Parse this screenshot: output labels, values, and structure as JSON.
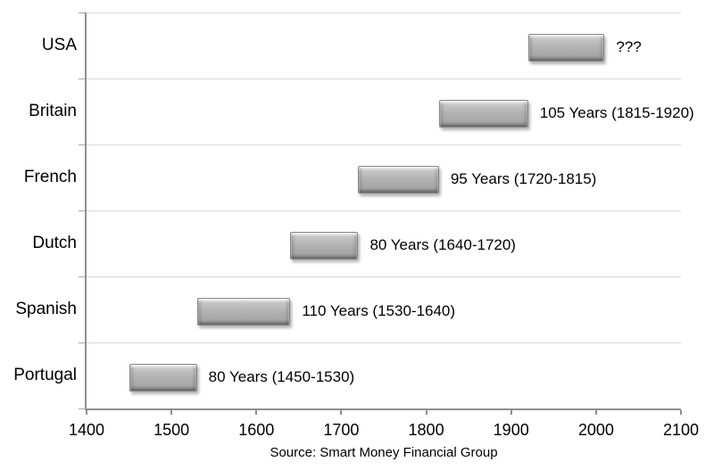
{
  "chart_data": {
    "type": "bar",
    "orientation": "horizontal-range",
    "title": "",
    "xlabel": "",
    "ylabel": "",
    "xlim": [
      1400,
      2100
    ],
    "x_ticks": [
      1400,
      1500,
      1600,
      1700,
      1800,
      1900,
      2000,
      2100
    ],
    "categories": [
      "USA",
      "Britain",
      "French",
      "Dutch",
      "Spanish",
      "Portugal"
    ],
    "series": [
      {
        "category": "USA",
        "start": 1920,
        "end": 2010,
        "duration_label": "???"
      },
      {
        "category": "Britain",
        "start": 1815,
        "end": 1920,
        "duration_label": "105 Years (1815-1920)"
      },
      {
        "category": "French",
        "start": 1720,
        "end": 1815,
        "duration_label": "95 Years (1720-1815)"
      },
      {
        "category": "Dutch",
        "start": 1640,
        "end": 1720,
        "duration_label": "80 Years (1640-1720)"
      },
      {
        "category": "Spanish",
        "start": 1530,
        "end": 1640,
        "duration_label": "110 Years (1530-1640)"
      },
      {
        "category": "Portugal",
        "start": 1450,
        "end": 1530,
        "duration_label": "80 Years (1450-1530)"
      }
    ],
    "legend": "none",
    "grid": "row-separators",
    "bar_color": "#b1b1b1",
    "gridline_color": "#dadada",
    "axis_color": "#8f8f8f"
  },
  "source_note": "Source: Smart Money Financial Group"
}
